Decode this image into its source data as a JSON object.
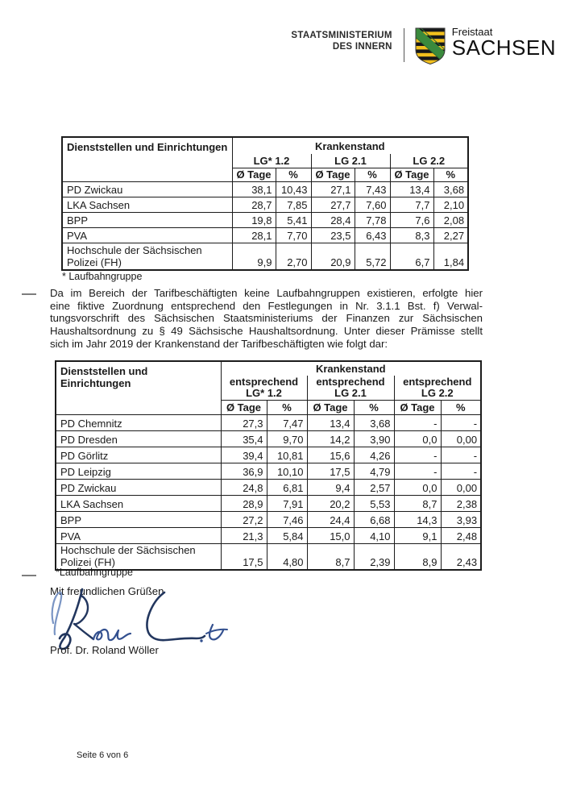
{
  "header": {
    "ministry_line1": "STAATSMINISTERIUM",
    "ministry_line2": "DES INNERN",
    "state_small": "Freistaat",
    "state_large": "SACHSEN"
  },
  "icons": {
    "coat_of_arms": "saxony-coat-of-arms"
  },
  "colors": {
    "arms_gold": "#F2C01D",
    "arms_black": "#17181A",
    "arms_green": "#3A8A3D",
    "signature_ink": "#33508F",
    "signature_ink_dark": "#22365E",
    "table_border": "#1C1C1C"
  },
  "table1": {
    "col_header": "Dienststellen und Einrichtungen",
    "span_header": "Krankenstand",
    "groups": [
      "LG* 1.2",
      "LG 2.1",
      "LG 2.2"
    ],
    "subcols": [
      "Ø Tage",
      "%"
    ],
    "rows": [
      {
        "name": "PD Zwickau",
        "values": [
          "38,1",
          "10,43",
          "27,1",
          "7,43",
          "13,4",
          "3,68"
        ]
      },
      {
        "name": "LKA Sachsen",
        "values": [
          "28,7",
          "7,85",
          "27,7",
          "7,60",
          "7,7",
          "2,10"
        ]
      },
      {
        "name": "BPP",
        "values": [
          "19,8",
          "5,41",
          "28,4",
          "7,78",
          "7,6",
          "2,08"
        ]
      },
      {
        "name": "PVA",
        "values": [
          "28,1",
          "7,70",
          "23,5",
          "6,43",
          "8,3",
          "2,27"
        ]
      },
      {
        "name": "Hochschule der Sächsischen Polizei (FH)",
        "twoLine": true,
        "values": [
          "9,9",
          "2,70",
          "20,9",
          "5,72",
          "6,7",
          "1,84"
        ]
      }
    ],
    "footnote": "* Laufbahngruppe"
  },
  "paragraph_lines": [
    "Da im Bereich der Tarifbeschäftigten keine Laufbahngruppen existieren, erfolgte hier",
    "eine fiktive Zuordnung entsprechend den Festlegungen in Nr. 3.1.1 Bst. f) Verwal-",
    "tungsvorschrift des Sächsischen Staatsministeriums der Finanzen zur Sächsischen",
    "Haushaltsordnung zu § 49 Sächsische Haushaltsordnung. Unter dieser Prämisse stellt",
    "sich im Jahr 2019 der Krankenstand der Tarifbeschäftigten wie folgt dar:"
  ],
  "table2": {
    "col_header": "Dienststellen und Einrichtungen",
    "span_header": "Krankenstand",
    "groups": [
      {
        "line1": "entsprechend",
        "line2": "LG* 1.2"
      },
      {
        "line1": "entsprechend",
        "line2": "LG 2.1"
      },
      {
        "line1": "entsprechend",
        "line2": "LG 2.2"
      }
    ],
    "subcols": [
      "Ø Tage",
      "%"
    ],
    "rows": [
      {
        "name": "PD Chemnitz",
        "values": [
          "27,3",
          "7,47",
          "13,4",
          "3,68",
          "-",
          "-"
        ]
      },
      {
        "name": "PD Dresden",
        "values": [
          "35,4",
          "9,70",
          "14,2",
          "3,90",
          "0,0",
          "0,00"
        ]
      },
      {
        "name": "PD Görlitz",
        "values": [
          "39,4",
          "10,81",
          "15,6",
          "4,26",
          "-",
          "-"
        ]
      },
      {
        "name": "PD Leipzig",
        "values": [
          "36,9",
          "10,10",
          "17,5",
          "4,79",
          "-",
          "-"
        ]
      },
      {
        "name": "PD Zwickau",
        "values": [
          "24,8",
          "6,81",
          "9,4",
          "2,57",
          "0,0",
          "0,00"
        ]
      },
      {
        "name": "LKA Sachsen",
        "values": [
          "28,9",
          "7,91",
          "20,2",
          "5,53",
          "8,7",
          "2,38"
        ]
      },
      {
        "name": "BPP",
        "values": [
          "27,2",
          "7,46",
          "24,4",
          "6,68",
          "14,3",
          "3,93"
        ]
      },
      {
        "name": "PVA",
        "values": [
          "21,3",
          "5,84",
          "15,0",
          "4,10",
          "9,1",
          "2,48"
        ]
      },
      {
        "name": "Hochschule der Sächsischen Polizei (FH)",
        "twoLine": true,
        "values": [
          "17,5",
          "4,80",
          "8,7",
          "2,39",
          "8,9",
          "2,43"
        ]
      }
    ],
    "footnote": "*Laufbahngruppe"
  },
  "closing": {
    "salutation": "Mit freundlichen Grüßen",
    "signer": "Prof. Dr. Roland Wöller"
  },
  "footer": {
    "page": "Seite 6 von 6"
  }
}
